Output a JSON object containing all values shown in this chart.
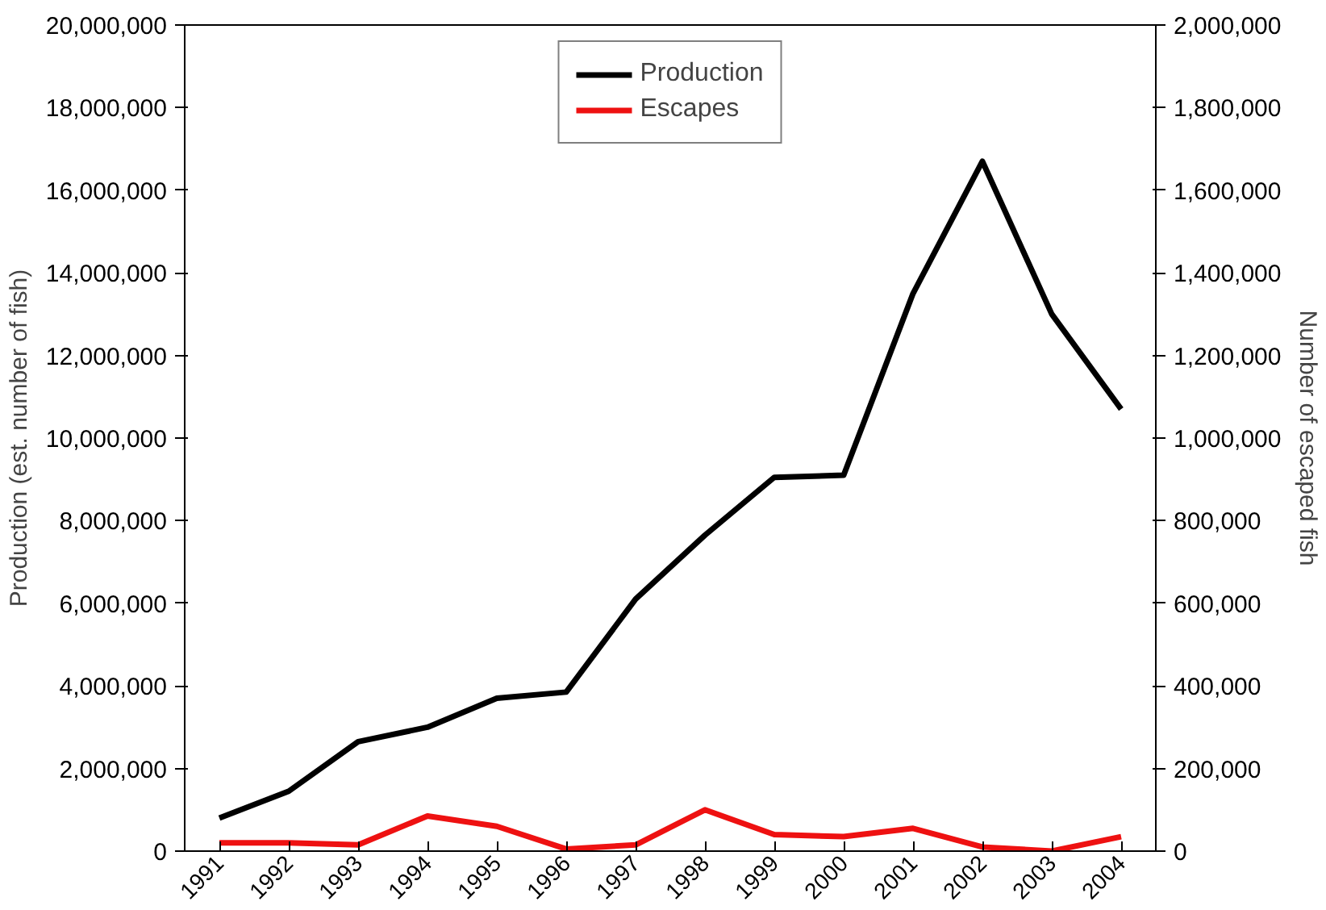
{
  "chart_data": {
    "type": "line",
    "ylabel": "Production (est. number of fish)",
    "y2label": "Number of escaped fish",
    "categories": [
      "1991",
      "1992",
      "1993",
      "1994",
      "1995",
      "1996",
      "1997",
      "1998",
      "1999",
      "2000",
      "2001",
      "2002",
      "2003",
      "2004"
    ],
    "series": [
      {
        "name": "Production",
        "color": "#000000",
        "values": [
          800000,
          1450000,
          2650000,
          3000000,
          3700000,
          3850000,
          6100000,
          7650000,
          9050000,
          9100000,
          13500000,
          16700000,
          13000000,
          10700000
        ]
      },
      {
        "name": "Escapes",
        "color": "#ee1111",
        "axis": "y2",
        "values": [
          20000,
          20000,
          15000,
          85000,
          60000,
          5000,
          15000,
          100000,
          40000,
          35000,
          55000,
          10000,
          0,
          35000
        ]
      }
    ],
    "ylim": [
      0,
      20000000
    ],
    "yticks": [
      {
        "value": 0,
        "label": "0"
      },
      {
        "value": 2000000,
        "label": "2,000,000"
      },
      {
        "value": 4000000,
        "label": "4,000,000"
      },
      {
        "value": 6000000,
        "label": "6,000,000"
      },
      {
        "value": 8000000,
        "label": "8,000,000"
      },
      {
        "value": 10000000,
        "label": "10,000,000"
      },
      {
        "value": 12000000,
        "label": "12,000,000"
      },
      {
        "value": 14000000,
        "label": "14,000,000"
      },
      {
        "value": 16000000,
        "label": "16,000,000"
      },
      {
        "value": 18000000,
        "label": "18,000,000"
      },
      {
        "value": 20000000,
        "label": "20,000,000"
      }
    ],
    "y2lim": [
      0,
      2000000
    ],
    "y2ticks": [
      {
        "value": 0,
        "label": "0"
      },
      {
        "value": 200000,
        "label": "200,000"
      },
      {
        "value": 400000,
        "label": "400,000"
      },
      {
        "value": 600000,
        "label": "600,000"
      },
      {
        "value": 800000,
        "label": "800,000"
      },
      {
        "value": 1000000,
        "label": "1,000,000"
      },
      {
        "value": 1200000,
        "label": "1,200,000"
      },
      {
        "value": 1400000,
        "label": "1,400,000"
      },
      {
        "value": 1600000,
        "label": "1,600,000"
      },
      {
        "value": 1800000,
        "label": "1,800,000"
      },
      {
        "value": 2000000,
        "label": "2,000,000"
      }
    ],
    "legend": "top",
    "grid": false,
    "marker": "none",
    "line_style": "solid"
  }
}
